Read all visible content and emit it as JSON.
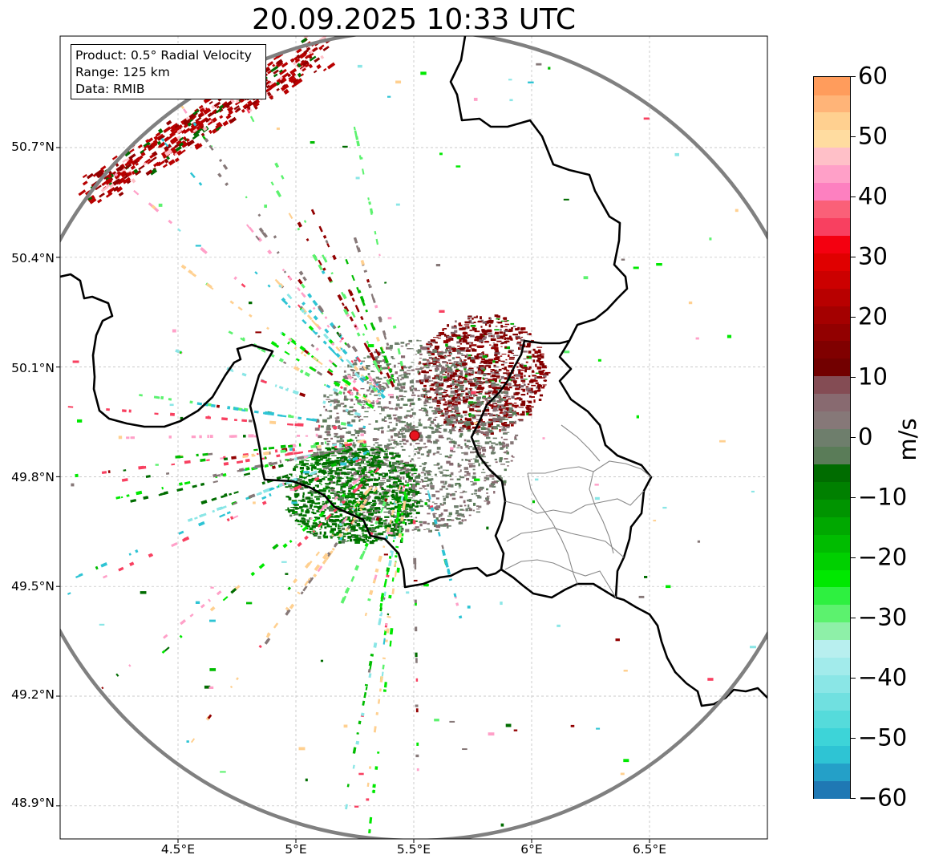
{
  "title": "20.09.2025 10:33 UTC",
  "info_box": {
    "product": "Product: 0.5° Radial Velocity",
    "range": "Range: 125 km",
    "data": "Data: RMIB"
  },
  "axes": {
    "lat_ticks": [
      {
        "label": "50.7°N",
        "value": 50.7
      },
      {
        "label": "50.4°N",
        "value": 50.4
      },
      {
        "label": "50.1°N",
        "value": 50.1
      },
      {
        "label": "49.8°N",
        "value": 49.8
      },
      {
        "label": "49.5°N",
        "value": 49.5
      },
      {
        "label": "49.2°N",
        "value": 49.2
      },
      {
        "label": "48.9°N",
        "value": 48.9
      }
    ],
    "lon_ticks": [
      {
        "label": "4.5°E",
        "value": 4.5
      },
      {
        "label": "5°E",
        "value": 5.0
      },
      {
        "label": "5.5°E",
        "value": 5.5
      },
      {
        "label": "6°E",
        "value": 6.0
      },
      {
        "label": "6.5°E",
        "value": 6.5
      }
    ],
    "lon_range": [
      4.0,
      7.0
    ],
    "lat_range": [
      48.8,
      51.0
    ]
  },
  "radar": {
    "site_lon": 5.505,
    "site_lat": 49.914,
    "range_km": 125,
    "site_marker_color": "#e8141e"
  },
  "colorbar": {
    "unit": "m/s",
    "min": -60,
    "max": 60,
    "tick_values": [
      60,
      50,
      40,
      30,
      20,
      10,
      0,
      -10,
      -20,
      -30,
      -40,
      -50,
      -60
    ],
    "tick_labels": [
      "60",
      "50",
      "40",
      "30",
      "20",
      "10",
      "0",
      "−10",
      "−20",
      "−30",
      "−40",
      "−50",
      "−60"
    ],
    "colors": [
      "#1f78b4",
      "#24a0c8",
      "#2ec4d4",
      "#3dd4d8",
      "#55dbdb",
      "#70e0e0",
      "#8ae6e6",
      "#a2ebeb",
      "#b8efef",
      "#8ef0a8",
      "#5cf26e",
      "#2ef040",
      "#00e800",
      "#00d000",
      "#00bc00",
      "#00a800",
      "#009400",
      "#008000",
      "#006c00",
      "#5a7c58",
      "#6e7e6c",
      "#867878",
      "#886a70",
      "#844c54",
      "#720000",
      "#800000",
      "#920000",
      "#a40000",
      "#b80000",
      "#cc0000",
      "#e00000",
      "#f40010",
      "#f84060",
      "#fa6078",
      "#fd80c0",
      "#ffa0c8",
      "#ffc0c8",
      "#ffdca0",
      "#ffd090",
      "#ffb478",
      "#ff9c5c"
    ]
  }
}
